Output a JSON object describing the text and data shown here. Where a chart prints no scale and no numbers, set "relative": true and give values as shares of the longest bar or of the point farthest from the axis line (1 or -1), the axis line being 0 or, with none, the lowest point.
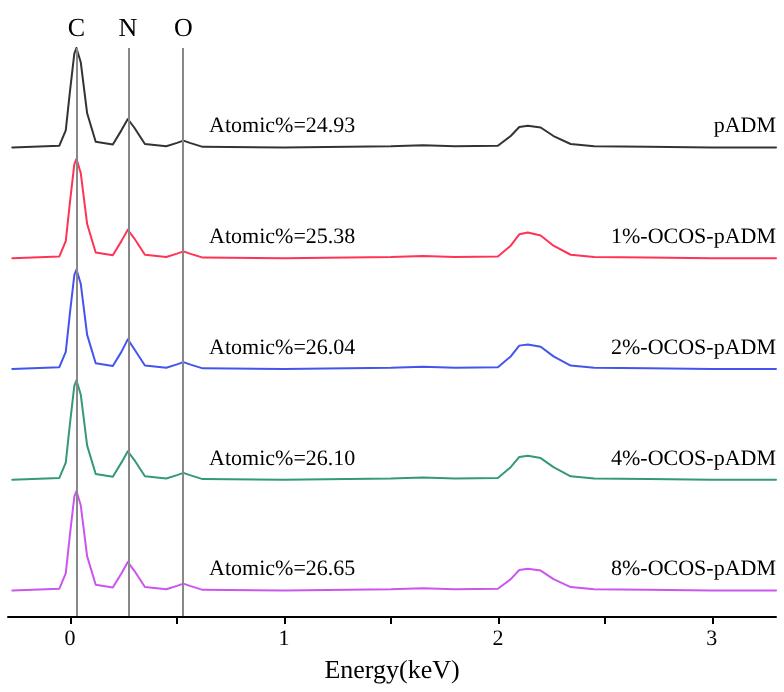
{
  "chart_data": {
    "type": "line",
    "relative": true,
    "xlabel": "Energy(keV)",
    "xlim": [
      -0.29,
      3.3
    ],
    "xticks": [
      0,
      {
        "value": 0.5,
        "label": null
      },
      1,
      {
        "value": 1.5,
        "label": null
      },
      2,
      {
        "value": 2.5,
        "label": null
      },
      3
    ],
    "x": [
      -0.27,
      -0.05,
      -0.02,
      0.0,
      0.02,
      0.03,
      0.05,
      0.08,
      0.12,
      0.2,
      0.24,
      0.27,
      0.3,
      0.35,
      0.45,
      0.5,
      0.53,
      0.56,
      0.62,
      1.0,
      1.5,
      1.65,
      1.8,
      2.0,
      2.06,
      2.1,
      2.14,
      2.2,
      2.26,
      2.34,
      2.45,
      2.7,
      3.0,
      3.3
    ],
    "series": [
      {
        "name": "pADM",
        "color": "#333333",
        "values": [
          0.825,
          0.828,
          0.855,
          0.925,
          0.99,
          1,
          0.975,
          0.885,
          0.835,
          0.83,
          0.855,
          0.875,
          0.86,
          0.831,
          0.827,
          0.833,
          0.837,
          0.833,
          0.826,
          0.825,
          0.827,
          0.829,
          0.827,
          0.828,
          0.845,
          0.861,
          0.863,
          0.86,
          0.845,
          0.831,
          0.827,
          0.826,
          0.825,
          0.825
        ]
      },
      {
        "name": "1%-OCOS-pADM",
        "color": "#ff3355",
        "values": [
          0.63,
          0.633,
          0.66,
          0.73,
          0.795,
          0.805,
          0.78,
          0.69,
          0.64,
          0.635,
          0.66,
          0.68,
          0.665,
          0.636,
          0.632,
          0.638,
          0.642,
          0.638,
          0.631,
          0.63,
          0.632,
          0.634,
          0.632,
          0.633,
          0.652,
          0.672,
          0.675,
          0.67,
          0.652,
          0.636,
          0.632,
          0.631,
          0.63,
          0.63
        ]
      },
      {
        "name": "2%-OCOS-pADM",
        "color": "#4455ee",
        "values": [
          0.435,
          0.438,
          0.465,
          0.535,
          0.6,
          0.61,
          0.585,
          0.495,
          0.445,
          0.44,
          0.465,
          0.487,
          0.47,
          0.441,
          0.437,
          0.443,
          0.447,
          0.443,
          0.436,
          0.435,
          0.437,
          0.439,
          0.437,
          0.438,
          0.457,
          0.476,
          0.478,
          0.474,
          0.457,
          0.441,
          0.437,
          0.436,
          0.435,
          0.435
        ]
      },
      {
        "name": "4%-OCOS-pADM",
        "color": "#339977",
        "values": [
          0.24,
          0.243,
          0.27,
          0.34,
          0.405,
          0.415,
          0.39,
          0.3,
          0.25,
          0.245,
          0.27,
          0.29,
          0.275,
          0.246,
          0.242,
          0.248,
          0.252,
          0.248,
          0.241,
          0.24,
          0.242,
          0.244,
          0.242,
          0.243,
          0.262,
          0.28,
          0.282,
          0.278,
          0.262,
          0.246,
          0.242,
          0.241,
          0.24,
          0.24
        ]
      },
      {
        "name": "8%-OCOS-pADM",
        "color": "#cc55ee",
        "values": [
          0.045,
          0.048,
          0.075,
          0.145,
          0.21,
          0.22,
          0.195,
          0.105,
          0.055,
          0.05,
          0.075,
          0.095,
          0.08,
          0.051,
          0.047,
          0.053,
          0.057,
          0.053,
          0.046,
          0.045,
          0.047,
          0.049,
          0.047,
          0.048,
          0.065,
          0.081,
          0.083,
          0.08,
          0.065,
          0.051,
          0.047,
          0.046,
          0.045,
          0.045
        ]
      }
    ],
    "ref_lines": [
      {
        "axis": "x",
        "value": 0.03,
        "label": "C",
        "color": "#888888"
      },
      {
        "axis": "x",
        "value": 0.27,
        "label": "N",
        "color": "#888888"
      },
      {
        "axis": "x",
        "value": 0.53,
        "label": "O",
        "color": "#888888"
      }
    ],
    "annotations": [
      "Atomic%=24.93",
      "Atomic%=25.38",
      "Atomic%=26.04",
      "Atomic%=26.10",
      "Atomic%=26.65"
    ],
    "grid": false,
    "legend": false,
    "marker": "none",
    "line_style": "solid"
  }
}
